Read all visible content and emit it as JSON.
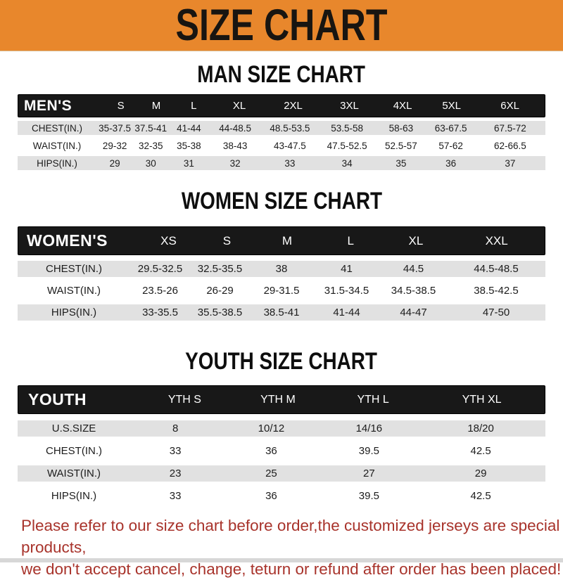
{
  "banner": {
    "title": "SIZE CHART"
  },
  "colors": {
    "banner_bg": "#E8872C",
    "table_header_bg": "#181818",
    "row_alt_bg": "#E1E1E1",
    "footer_text": "#A8332B"
  },
  "sections": [
    {
      "heading": "MAN SIZE CHART",
      "header_label": "MEN'S",
      "columns": [
        "S",
        "M",
        "L",
        "XL",
        "2XL",
        "3XL",
        "4XL",
        "5XL",
        "6XL"
      ],
      "rows": [
        {
          "label": "CHEST(IN.)",
          "values": [
            "35-37.5",
            "37.5-41",
            "41-44",
            "44-48.5",
            "48.5-53.5",
            "53.5-58",
            "58-63",
            "63-67.5",
            "67.5-72"
          ]
        },
        {
          "label": "WAIST(IN.)",
          "values": [
            "29-32",
            "32-35",
            "35-38",
            "38-43",
            "43-47.5",
            "47.5-52.5",
            "52.5-57",
            "57-62",
            "62-66.5"
          ]
        },
        {
          "label": "HIPS(IN.)",
          "values": [
            "29",
            "30",
            "31",
            "32",
            "33",
            "34",
            "35",
            "36",
            "37"
          ]
        }
      ]
    },
    {
      "heading": "WOMEN SIZE CHART",
      "header_label": "WOMEN'S",
      "columns": [
        "XS",
        "S",
        "M",
        "L",
        "XL",
        "XXL"
      ],
      "rows": [
        {
          "label": "CHEST(IN.)",
          "values": [
            "29.5-32.5",
            "32.5-35.5",
            "38",
            "41",
            "44.5",
            "44.5-48.5"
          ]
        },
        {
          "label": "WAIST(IN.)",
          "values": [
            "23.5-26",
            "26-29",
            "29-31.5",
            "31.5-34.5",
            "34.5-38.5",
            "38.5-42.5"
          ]
        },
        {
          "label": "HIPS(IN.)",
          "values": [
            "33-35.5",
            "35.5-38.5",
            "38.5-41",
            "41-44",
            "44-47",
            "47-50"
          ]
        }
      ]
    },
    {
      "heading": "YOUTH SIZE CHART",
      "header_label": "YOUTH",
      "columns": [
        "YTH S",
        "YTH M",
        "YTH L",
        "YTH XL"
      ],
      "rows": [
        {
          "label": "U.S.SIZE",
          "values": [
            "8",
            "10/12",
            "14/16",
            "18/20"
          ]
        },
        {
          "label": "CHEST(IN.)",
          "values": [
            "33",
            "36",
            "39.5",
            "42.5"
          ]
        },
        {
          "label": "WAIST(IN.)",
          "values": [
            "23",
            "25",
            "27",
            "29"
          ]
        },
        {
          "label": "HIPS(IN.)",
          "values": [
            "33",
            "36",
            "39.5",
            "42.5"
          ]
        }
      ]
    }
  ],
  "footer": {
    "line1": "Please refer to our size chart before order,the customized jerseys are special products,",
    "line2": "we don't accept cancel, change, teturn or refund after order has been placed!"
  }
}
